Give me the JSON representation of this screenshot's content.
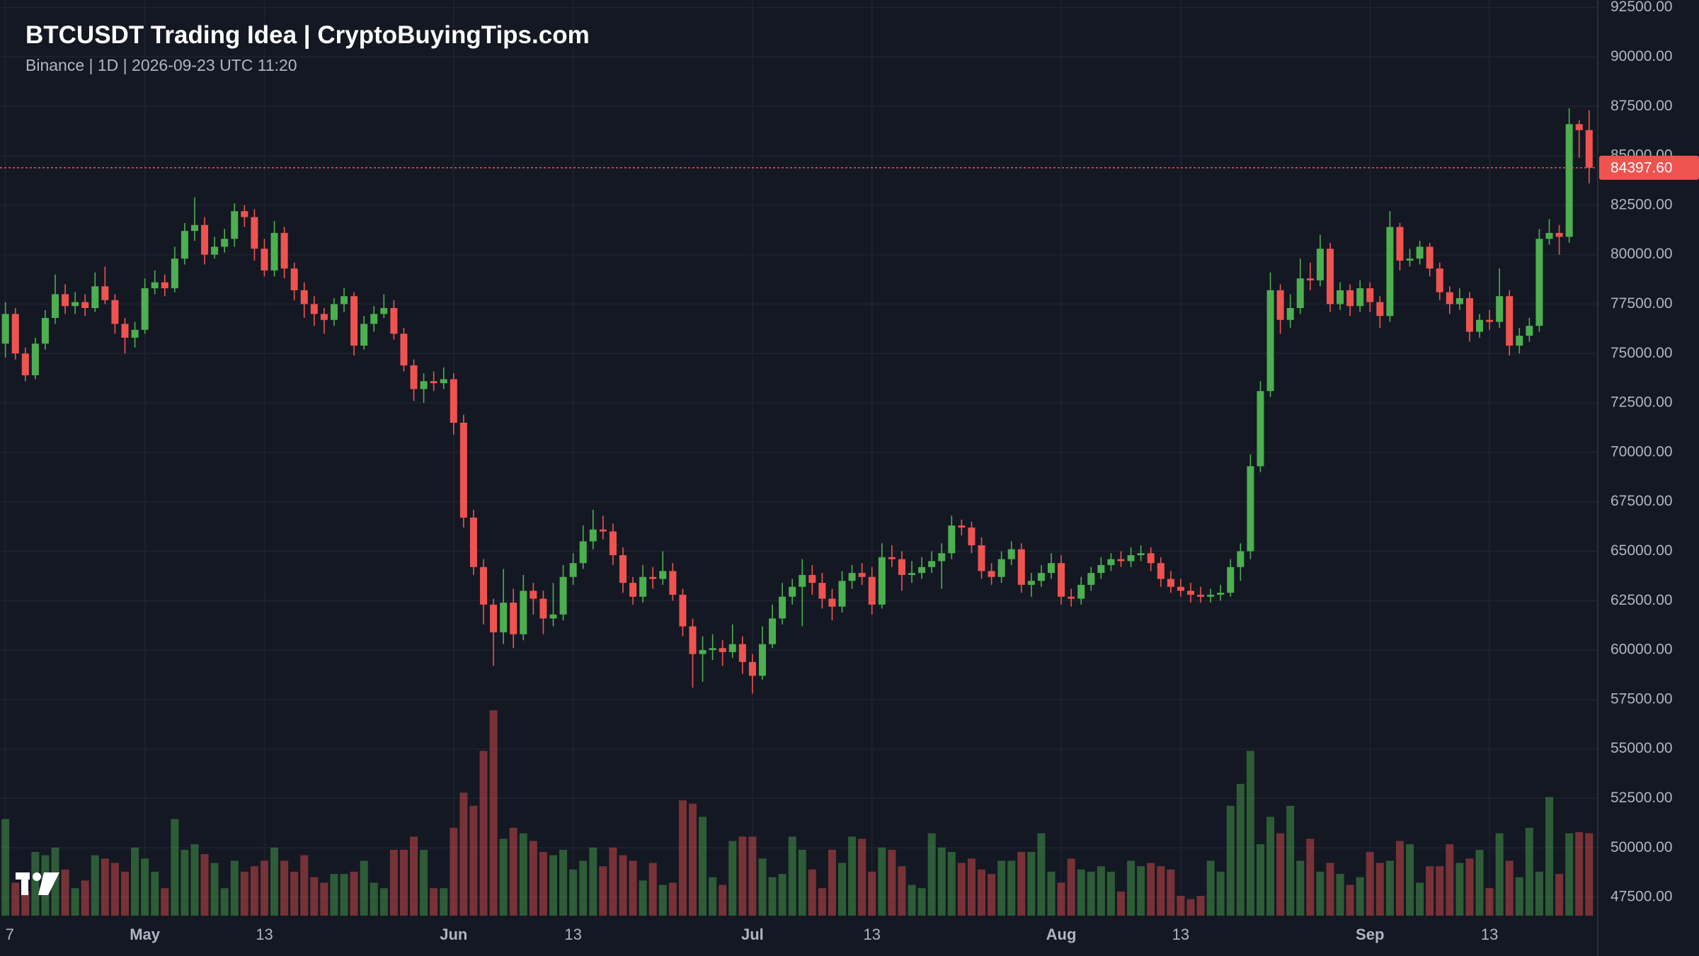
{
  "chart_data": {
    "type": "candlestick",
    "title": "BTCUSDT Trading Idea | CryptoBuyingTips.com",
    "subtitle": "Binance | 1D | 2026-09-23 UTC 11:20",
    "up_color": "#4caf50",
    "down_color": "#ef5350",
    "grid": true,
    "ylim": [
      46570,
      92880
    ],
    "yticks": [
      {
        "value": 47500,
        "label": "47500.00"
      },
      {
        "value": 50000,
        "label": "50000.00"
      },
      {
        "value": 52500,
        "label": "52500.00"
      },
      {
        "value": 55000,
        "label": "55000.00"
      },
      {
        "value": 57500,
        "label": "57500.00"
      },
      {
        "value": 60000,
        "label": "60000.00"
      },
      {
        "value": 62500,
        "label": "62500.00"
      },
      {
        "value": 65000,
        "label": "65000.00"
      },
      {
        "value": 67500,
        "label": "67500.00"
      },
      {
        "value": 70000,
        "label": "70000.00"
      },
      {
        "value": 72500,
        "label": "72500.00"
      },
      {
        "value": 75000,
        "label": "75000.00"
      },
      {
        "value": 77500,
        "label": "77500.00"
      },
      {
        "value": 80000,
        "label": "80000.00"
      },
      {
        "value": 82500,
        "label": "82500.00"
      },
      {
        "value": 85000,
        "label": "85000.00"
      },
      {
        "value": 87500,
        "label": "87500.00"
      },
      {
        "value": 90000,
        "label": "90000.00"
      },
      {
        "value": 92500,
        "label": "92500.00"
      }
    ],
    "last_price": {
      "value": 84397.6,
      "label": "84397.60"
    },
    "categories": [
      "7",
      null,
      null,
      null,
      null,
      null,
      null,
      null,
      null,
      null,
      null,
      null,
      null,
      null,
      "May",
      null,
      null,
      null,
      null,
      null,
      null,
      null,
      null,
      null,
      null,
      null,
      "13",
      null,
      null,
      null,
      null,
      null,
      null,
      null,
      null,
      null,
      null,
      null,
      null,
      null,
      null,
      null,
      null,
      null,
      null,
      "Jun",
      null,
      null,
      null,
      null,
      null,
      null,
      null,
      null,
      null,
      null,
      null,
      "13",
      null,
      null,
      null,
      null,
      null,
      null,
      null,
      null,
      null,
      null,
      null,
      null,
      null,
      null,
      null,
      null,
      null,
      "Jul",
      null,
      null,
      null,
      null,
      null,
      null,
      null,
      null,
      null,
      null,
      null,
      "13",
      null,
      null,
      null,
      null,
      null,
      null,
      null,
      null,
      null,
      null,
      null,
      null,
      null,
      null,
      null,
      null,
      null,
      null,
      "Aug",
      null,
      null,
      null,
      null,
      null,
      null,
      null,
      null,
      null,
      null,
      null,
      "13",
      null,
      null,
      null,
      null,
      null,
      null,
      null,
      null,
      null,
      null,
      null,
      null,
      null,
      null,
      null,
      null,
      null,
      null,
      "Sep",
      null,
      null,
      null,
      null,
      null,
      null,
      null,
      null,
      null,
      null,
      null,
      "13",
      null,
      null,
      null,
      null,
      null,
      null,
      null,
      null,
      null,
      null
    ],
    "open": [
      75500,
      77000,
      75000,
      73900,
      75500,
      76800,
      78000,
      77400,
      77600,
      77300,
      78400,
      77700,
      76500,
      75800,
      76200,
      78300,
      78600,
      78300,
      79800,
      81200,
      81500,
      80000,
      80400,
      80800,
      82200,
      81900,
      80300,
      79200,
      81100,
      79300,
      78200,
      77500,
      77000,
      76700,
      77500,
      77900,
      75400,
      76500,
      77000,
      77300,
      76000,
      74400,
      73200,
      73600,
      73500,
      73700,
      71500,
      66700,
      64200,
      62300,
      60900,
      62400,
      60800,
      63000,
      62600,
      61600,
      61800,
      63700,
      64400,
      65500,
      66100,
      66000,
      64800,
      63400,
      62700,
      63700,
      63600,
      64000,
      62800,
      61200,
      59800,
      60000,
      60100,
      59900,
      60300,
      59400,
      58700,
      60300,
      61600,
      62700,
      63200,
      63800,
      63400,
      62600,
      62200,
      63500,
      63900,
      63700,
      62300,
      64700,
      64600,
      63800,
      63900,
      64200,
      64500,
      64900,
      66300,
      66200,
      65300,
      64000,
      63700,
      64600,
      65100,
      63300,
      63500,
      63900,
      64400,
      62700,
      62600,
      63300,
      63900,
      64300,
      64600,
      64500,
      64800,
      64900,
      64400,
      63600,
      63200,
      63000,
      62800,
      62700,
      62800,
      62900,
      64200,
      65000,
      69300,
      73100,
      78200,
      76700,
      77300,
      78800,
      78700,
      80300,
      77500,
      78200,
      77400,
      78300,
      77600,
      76900,
      81400,
      79700,
      79800,
      80400,
      79300,
      78100,
      77500,
      77800,
      76100,
      76700,
      76600,
      77900,
      75400,
      75900,
      76400,
      80800,
      81100,
      80900,
      86600,
      86300
    ],
    "high": [
      77600,
      77300,
      75300,
      75800,
      77200,
      79000,
      78500,
      78100,
      78000,
      79100,
      79400,
      78000,
      76800,
      76600,
      78800,
      79200,
      79000,
      80400,
      81600,
      82900,
      81900,
      80900,
      81300,
      82600,
      82500,
      82300,
      80800,
      81700,
      81400,
      79600,
      78600,
      77900,
      77300,
      77800,
      78300,
      78100,
      76900,
      77400,
      78000,
      77700,
      76300,
      74700,
      74000,
      74100,
      74300,
      74000,
      71900,
      67100,
      64600,
      62600,
      64100,
      63100,
      63800,
      63400,
      63000,
      63400,
      64300,
      64900,
      66300,
      67100,
      66800,
      66400,
      65200,
      63700,
      64300,
      64200,
      65000,
      64400,
      63100,
      61600,
      60700,
      60800,
      60500,
      61300,
      60700,
      59800,
      61200,
      62300,
      63400,
      63600,
      64600,
      64300,
      63900,
      63100,
      64000,
      64300,
      64400,
      64200,
      65400,
      65300,
      65000,
      64500,
      64700,
      65000,
      65400,
      66800,
      66600,
      66500,
      65700,
      64400,
      65000,
      65500,
      65400,
      63900,
      64300,
      64900,
      64800,
      63100,
      63700,
      64200,
      64700,
      64900,
      65000,
      65200,
      65300,
      65200,
      64700,
      64000,
      63600,
      63400,
      63200,
      63100,
      63300,
      64600,
      65400,
      69900,
      73600,
      79100,
      78500,
      78000,
      79800,
      79600,
      81000,
      80600,
      78600,
      78500,
      78700,
      78600,
      77900,
      82200,
      81600,
      80300,
      80700,
      80600,
      79600,
      78400,
      78300,
      78100,
      77000,
      77200,
      79300,
      78200,
      76300,
      76800,
      81300,
      81800,
      81500,
      87400,
      86800,
      87300
    ],
    "low": [
      74800,
      74700,
      73600,
      73700,
      75200,
      76500,
      77000,
      77000,
      76900,
      77100,
      77500,
      76000,
      75000,
      75300,
      76000,
      78000,
      77900,
      78100,
      79500,
      80700,
      79500,
      79800,
      80100,
      80400,
      81400,
      79700,
      78900,
      78900,
      78800,
      77700,
      76800,
      76400,
      76000,
      76400,
      77100,
      74900,
      75200,
      76100,
      76800,
      75700,
      74100,
      72600,
      72500,
      73100,
      73200,
      70900,
      66200,
      63800,
      61300,
      59200,
      60300,
      60100,
      60500,
      61800,
      60800,
      61200,
      61500,
      63300,
      64100,
      65100,
      65600,
      64300,
      62900,
      62300,
      62400,
      63100,
      63300,
      62500,
      60700,
      58100,
      58400,
      59500,
      59200,
      59600,
      58800,
      57800,
      58500,
      60100,
      61300,
      62300,
      61200,
      62800,
      62100,
      61500,
      61900,
      63100,
      63300,
      61800,
      62100,
      64200,
      63000,
      63400,
      63600,
      63900,
      63100,
      64600,
      65800,
      64900,
      63600,
      63300,
      63400,
      64300,
      62900,
      62700,
      63200,
      63600,
      62300,
      62200,
      62300,
      63000,
      63600,
      64000,
      64200,
      64200,
      64500,
      64000,
      63200,
      62900,
      62700,
      62400,
      62400,
      62400,
      62500,
      62700,
      63500,
      64600,
      69000,
      72800,
      76000,
      76300,
      77000,
      78200,
      78400,
      77100,
      77200,
      76900,
      77100,
      77100,
      76300,
      76600,
      79200,
      79400,
      79500,
      78900,
      77700,
      77000,
      77200,
      75600,
      75800,
      76200,
      76300,
      74900,
      75000,
      75600,
      76100,
      80500,
      80000,
      80600,
      84900,
      83600
    ],
    "close": [
      77000,
      75000,
      73900,
      75500,
      76800,
      78000,
      77400,
      77600,
      77300,
      78400,
      77700,
      76500,
      75800,
      76200,
      78300,
      78600,
      78300,
      79800,
      81200,
      81500,
      80000,
      80400,
      80800,
      82200,
      81900,
      80300,
      79200,
      81100,
      79300,
      78200,
      77500,
      77000,
      76700,
      77500,
      77900,
      75400,
      76500,
      77000,
      77300,
      76000,
      74400,
      73200,
      73600,
      73500,
      73700,
      71500,
      66700,
      64200,
      62300,
      60900,
      62400,
      60800,
      63000,
      62600,
      61600,
      61800,
      63700,
      64400,
      65500,
      66100,
      66000,
      64800,
      63400,
      62700,
      63700,
      63600,
      64000,
      62800,
      61200,
      59800,
      60000,
      60100,
      59900,
      60300,
      59400,
      58700,
      60300,
      61600,
      62700,
      63200,
      63800,
      63400,
      62600,
      62200,
      63500,
      63900,
      63700,
      62300,
      64700,
      64600,
      63800,
      63900,
      64200,
      64500,
      64900,
      66300,
      66200,
      65300,
      64000,
      63700,
      64600,
      65100,
      63300,
      63500,
      63900,
      64400,
      62700,
      62600,
      63300,
      63900,
      64300,
      64600,
      64500,
      64800,
      64900,
      64400,
      63600,
      63200,
      63000,
      62800,
      62700,
      62800,
      62900,
      64200,
      65000,
      69300,
      73100,
      78200,
      76700,
      77300,
      78800,
      78700,
      80300,
      77500,
      78200,
      77400,
      78300,
      77600,
      76900,
      81400,
      79700,
      79800,
      80400,
      79300,
      78100,
      77500,
      77800,
      76100,
      76700,
      76600,
      77900,
      75400,
      75900,
      76400,
      80800,
      81100,
      80900,
      86600,
      86300,
      84397.6
    ],
    "volume": [
      88,
      30,
      22,
      58,
      55,
      62,
      42,
      25,
      32,
      55,
      52,
      48,
      40,
      62,
      52,
      40,
      25,
      88,
      60,
      65,
      56,
      48,
      25,
      50,
      40,
      45,
      50,
      62,
      50,
      40,
      55,
      35,
      30,
      38,
      38,
      40,
      50,
      30,
      25,
      60,
      60,
      72,
      60,
      25,
      25,
      80,
      112,
      100,
      150,
      187,
      70,
      80,
      75,
      68,
      58,
      55,
      60,
      42,
      50,
      62,
      45,
      62,
      55,
      50,
      32,
      48,
      28,
      30,
      105,
      102,
      90,
      35,
      28,
      68,
      72,
      72,
      52,
      35,
      38,
      72,
      60,
      42,
      25,
      60,
      48,
      72,
      70,
      40,
      62,
      60,
      45,
      28,
      25,
      75,
      62,
      58,
      48,
      52,
      42,
      38,
      50,
      50,
      58,
      58,
      75,
      40,
      30,
      52,
      42,
      40,
      45,
      40,
      22,
      50,
      45,
      48,
      45,
      42,
      18,
      15,
      18,
      50,
      40,
      100,
      120,
      150,
      65,
      90,
      75,
      100,
      50,
      70,
      40,
      48,
      38,
      28,
      35,
      58,
      48,
      50,
      68,
      65,
      30,
      45,
      45,
      65,
      48,
      52,
      60,
      25,
      75,
      50,
      35,
      80,
      40,
      108,
      38,
      75,
      76,
      75
    ]
  }
}
